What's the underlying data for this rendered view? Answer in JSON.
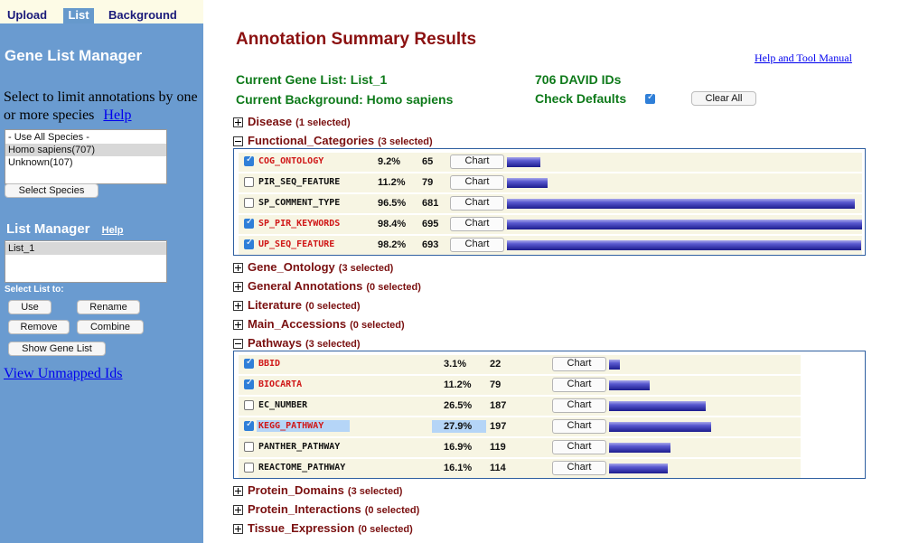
{
  "tabs": [
    "Upload",
    "List",
    "Background"
  ],
  "sidebar": {
    "title": "Gene List Manager",
    "species_text": "Select to limit annotations by one or more species",
    "species_help": "Help",
    "species_options": [
      "- Use All Species -",
      "Homo sapiens(707)",
      "Unknown(107)"
    ],
    "species_selected": "Homo sapiens(707)",
    "select_species_button": "Select Species",
    "list_manager_title": "List Manager",
    "list_manager_help": "Help",
    "lists": [
      "List_1"
    ],
    "select_list_to": "Select List to:",
    "buttons": {
      "use": "Use",
      "rename": "Rename",
      "remove": "Remove",
      "combine": "Combine",
      "show_gene_list": "Show Gene List"
    },
    "view_unmapped": "View Unmapped Ids"
  },
  "main": {
    "title": "Annotation Summary Results",
    "help_manual": "Help and Tool Manual",
    "current_gene_list": "Current Gene List: List_1",
    "david_ids": "706 DAVID IDs",
    "current_background": "Current Background: Homo sapiens",
    "check_defaults": "Check Defaults",
    "check_defaults_checked": true,
    "clear_all": "Clear All"
  },
  "categories": [
    {
      "name": "Disease",
      "selected": "(1 selected)",
      "expanded": false
    },
    {
      "name": "Functional_Categories",
      "selected": "(3 selected)",
      "expanded": true,
      "rows": [
        {
          "name": "COG_ONTOLOGY",
          "checked": true,
          "pct": "9.2%",
          "count": "65",
          "fraction": 0.094,
          "chart": "Chart"
        },
        {
          "name": "PIR_SEQ_FEATURE",
          "checked": false,
          "pct": "11.2%",
          "count": "79",
          "fraction": 0.114,
          "chart": "Chart"
        },
        {
          "name": "SP_COMMENT_TYPE",
          "checked": false,
          "pct": "96.5%",
          "count": "681",
          "fraction": 0.98,
          "chart": "Chart"
        },
        {
          "name": "SP_PIR_KEYWORDS",
          "checked": true,
          "pct": "98.4%",
          "count": "695",
          "fraction": 1.0,
          "chart": "Chart"
        },
        {
          "name": "UP_SEQ_FEATURE",
          "checked": true,
          "pct": "98.2%",
          "count": "693",
          "fraction": 0.997,
          "chart": "Chart"
        }
      ]
    },
    {
      "name": "Gene_Ontology",
      "selected": "(3 selected)",
      "expanded": false
    },
    {
      "name": "General Annotations",
      "selected": "(0 selected)",
      "expanded": false
    },
    {
      "name": "Literature",
      "selected": "(0 selected)",
      "expanded": false
    },
    {
      "name": "Main_Accessions",
      "selected": "(0 selected)",
      "expanded": false
    },
    {
      "name": "Pathways",
      "selected": "(3 selected)",
      "expanded": true,
      "rows": [
        {
          "name": "BBID",
          "checked": true,
          "pct": "3.1%",
          "count": "22",
          "fraction": 0.11,
          "chart": "Chart"
        },
        {
          "name": "BIOCARTA",
          "checked": true,
          "pct": "11.2%",
          "count": "79",
          "fraction": 0.402,
          "chart": "Chart"
        },
        {
          "name": "EC_NUMBER",
          "checked": false,
          "pct": "26.5%",
          "count": "187",
          "fraction": 0.95,
          "chart": "Chart"
        },
        {
          "name": "KEGG_PATHWAY",
          "checked": true,
          "pct": "27.9%",
          "count": "197",
          "fraction": 1.0,
          "chart": "Chart",
          "highlight": true
        },
        {
          "name": "PANTHER_PATHWAY",
          "checked": false,
          "pct": "16.9%",
          "count": "119",
          "fraction": 0.604,
          "chart": "Chart"
        },
        {
          "name": "REACTOME_PATHWAY",
          "checked": false,
          "pct": "16.1%",
          "count": "114",
          "fraction": 0.579,
          "chart": "Chart"
        }
      ]
    },
    {
      "name": "Protein_Domains",
      "selected": "(3 selected)",
      "expanded": false
    },
    {
      "name": "Protein_Interactions",
      "selected": "(0 selected)",
      "expanded": false
    },
    {
      "name": "Tissue_Expression",
      "selected": "(0 selected)",
      "expanded": false
    }
  ],
  "colors": {
    "accent_red": "#8b1010",
    "green": "#0e7a1a",
    "sidebar_bg": "#6a9bd0",
    "bar_fill": "#1c1c8e",
    "checkbox_blue": "#2f7fd8"
  }
}
